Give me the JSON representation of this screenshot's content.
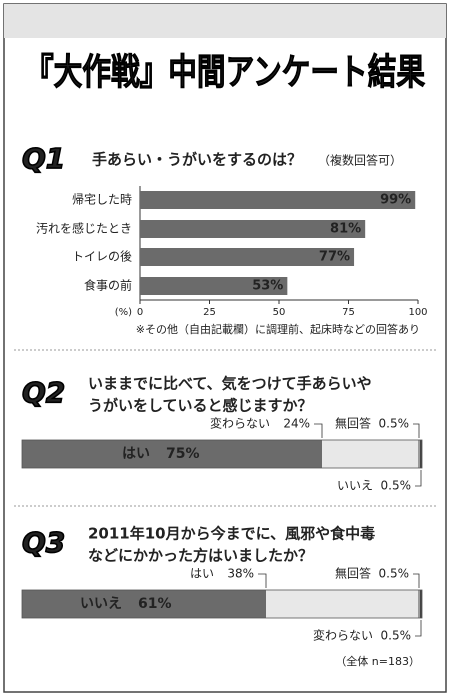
{
  "title": "『大作戦』中間アンケート結果",
  "chart_data": [
    {
      "type": "hbar",
      "label": "Q1",
      "title": "手あらい・うがいをするのは？",
      "subtitle": "（複数回答可）",
      "categories": [
        "帰宅した時",
        "汚れを感じたとき",
        "トイレの後",
        "食事の前"
      ],
      "values": [
        99,
        81,
        77,
        53
      ],
      "value_labels": [
        "99%",
        "81%",
        "77%",
        "53%"
      ],
      "color": "#6b6b6b",
      "xlim": [
        0,
        100
      ],
      "xticks": [
        0,
        25,
        50,
        75,
        100
      ],
      "x_label": "(%)",
      "note": "※その他（自由記載欄）に調理前、起床時などの回答あり"
    },
    {
      "type": "stacked",
      "label": "Q2",
      "title": [
        "いままでに比べて、気をつけて手あらいや",
        "うがいをしていると感じますか？"
      ],
      "series": [
        {
          "name": "はい",
          "color": "#6b6b6b",
          "values": [
            75
          ],
          "value_labels": [
            "75%"
          ]
        },
        {
          "name": "変わらない",
          "color": "#e8e8e8",
          "values": [
            24
          ],
          "value_labels": [
            "24%"
          ]
        },
        {
          "name": "無回答",
          "color": "#9a9a9a",
          "values": [
            0.5
          ],
          "value_labels": [
            "0.5%"
          ]
        },
        {
          "name": "いいえ",
          "color": "#444444",
          "values": [
            0.5
          ],
          "value_labels": [
            "0.5%"
          ]
        }
      ]
    },
    {
      "type": "stacked",
      "label": "Q3",
      "title": [
        "2011年10月から今までに、風邪や食中毒",
        "などにかかった方はいましたか？"
      ],
      "series": [
        {
          "name": "いいえ",
          "color": "#6b6b6b",
          "values": [
            61
          ],
          "value_labels": [
            "61%"
          ]
        },
        {
          "name": "はい",
          "color": "#e8e8e8",
          "values": [
            38
          ],
          "value_labels": [
            "38%"
          ]
        },
        {
          "name": "無回答",
          "color": "#9a9a9a",
          "values": [
            0.5
          ],
          "value_labels": [
            "0.5%"
          ]
        },
        {
          "name": "変わらない",
          "color": "#444444",
          "values": [
            0.5
          ],
          "value_labels": [
            "0.5%"
          ]
        }
      ]
    }
  ],
  "footnote": "（全体 n=183）"
}
